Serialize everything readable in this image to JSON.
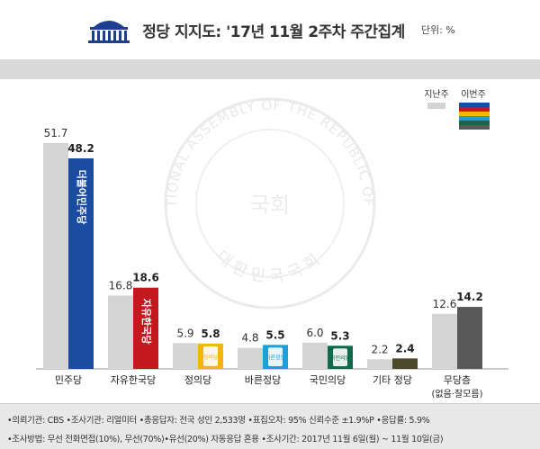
{
  "header": {
    "title": "정당 지지도: '17년 11월 2주차 주간집계",
    "unit": "단위: %"
  },
  "legend": {
    "previous_label": "지난주",
    "current_label": "이번주"
  },
  "watermark": {
    "outer_text": "THE NATIONAL ASSEMBLY OF THE REPUBLIC OF KOREA",
    "inner_text": "대한민국국회",
    "center_text": "국회"
  },
  "colors": {
    "previous": "#d4d4d4",
    "minjoo": "#1a4ca1",
    "liberty": "#c3181e",
    "justice": "#f2b705",
    "bareun": "#1d9fd9",
    "peoples": "#10694a",
    "other": "#4d4a2c",
    "none": "#595959",
    "band": "#d9d9d9",
    "footer": "#e8e8e8"
  },
  "chart_data": {
    "type": "bar",
    "categories": [
      "민주당",
      "자유한국당",
      "정의당",
      "바른정당",
      "국민의당",
      "기타 정당",
      "무당층"
    ],
    "category_sublabels": [
      "",
      "",
      "",
      "",
      "",
      "",
      "(없음·잘모름)"
    ],
    "series": [
      {
        "name": "지난주",
        "values": [
          51.7,
          16.8,
          5.9,
          4.8,
          6.0,
          2.2,
          12.6
        ]
      },
      {
        "name": "이번주",
        "values": [
          48.2,
          18.6,
          5.8,
          5.5,
          5.3,
          2.4,
          14.2
        ]
      }
    ],
    "value_labels": {
      "previous": [
        "51.7",
        "16.8",
        "5.9",
        "4.8",
        "6.0",
        "2.2",
        "12.6"
      ],
      "current": [
        "48.2",
        "18.6",
        "5.8",
        "5.5",
        "5.3",
        "2.4",
        "14.2"
      ]
    },
    "current_colors": [
      "#1a4ca1",
      "#c3181e",
      "#f2b705",
      "#1d9fd9",
      "#10694a",
      "#4d4a2c",
      "#595959"
    ],
    "party_logos": [
      "더불어민주당",
      "자유한국당",
      "정의당",
      "바른정당",
      "국민의당",
      "",
      ""
    ],
    "ylim": [
      0,
      55
    ],
    "xlabel": "",
    "ylabel": "",
    "legend_position": "top-right",
    "grid": false
  },
  "footer": {
    "line1": "•의뢰기관: CBS •조사기관: 리얼미터 •총응답자: 전국 성인 2,533명 •표집오차: 95% 신뢰수준 ±1.9%P •응답률: 5.9%",
    "line2": "•조사방법: 무선 전화면접(10%), 무선(70%)•유선(20%) 자동응답 혼용 •조사기간: 2017년 11월 6일(월) ~ 11월 10일(금)"
  }
}
